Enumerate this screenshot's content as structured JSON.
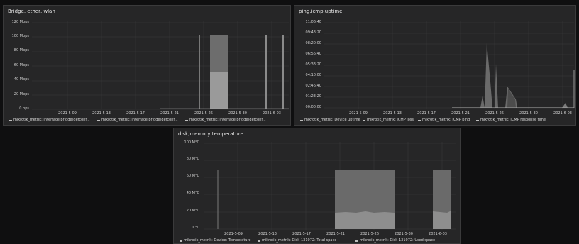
{
  "panels": {
    "bridge": {
      "title": "Bridge, ether, wlan",
      "yticks": [
        "120 Mbps",
        "100 Mbps",
        "80 Mbps",
        "60 Mbps",
        "40 Mbps",
        "20 Mbps",
        "0 bps"
      ],
      "xticks": [
        "2021-5-09",
        "2021-5-13",
        "2021-5-17",
        "2021-5-21",
        "2021-5-26",
        "2021-5-30",
        "2021-6-03"
      ],
      "legend": [
        "mikrotik_metrik: Interface bridge(defconf...",
        "mikrotik_metrik: Interface bridge(defconf...",
        "mikrotik_metrik: Interface bridge(defconf..."
      ]
    },
    "ping": {
      "title": "ping,icmp,uptime",
      "yticks": [
        "11:06:40",
        "09:43:20",
        "08:20:00",
        "06:56:40",
        "05:33:20",
        "04:10:00",
        "02:46:40",
        "01:23:20",
        "00:00:00"
      ],
      "xticks": [
        "2021-5-09",
        "2021-5-13",
        "2021-5-17",
        "2021-5-21",
        "2021-5-26",
        "2021-5-30",
        "2021-6-03"
      ],
      "legend": [
        "mikrotik_metrik: Device uptime",
        "mikrotik_metrik: ICMP loss",
        "mikrotik_metrik: ICMP ping",
        "mikrotik_metrik: ICMP response time"
      ]
    },
    "disk": {
      "title": "disk,memory,temperature",
      "yticks": [
        "100 M°C",
        "80 M°C",
        "60 M°C",
        "40 M°C",
        "20 M°C",
        "0 °C"
      ],
      "xticks": [
        "2021-5-09",
        "2021-5-13",
        "2021-5-17",
        "2021-5-21",
        "2021-5-26",
        "2021-5-30",
        "2021-6-03"
      ],
      "legend": [
        "mikrotik_metrik: Device: Temperature",
        "mikrotik_metrik: Disk-131072: Total space",
        "mikrotik_metrik: Disk-131072: Used space"
      ]
    }
  },
  "colors": {
    "background": "#0f0f10",
    "panel": "#262627",
    "series_light": "#bdbdbd",
    "series_mid": "#8a8a8a",
    "series_dark": "#666666"
  }
}
